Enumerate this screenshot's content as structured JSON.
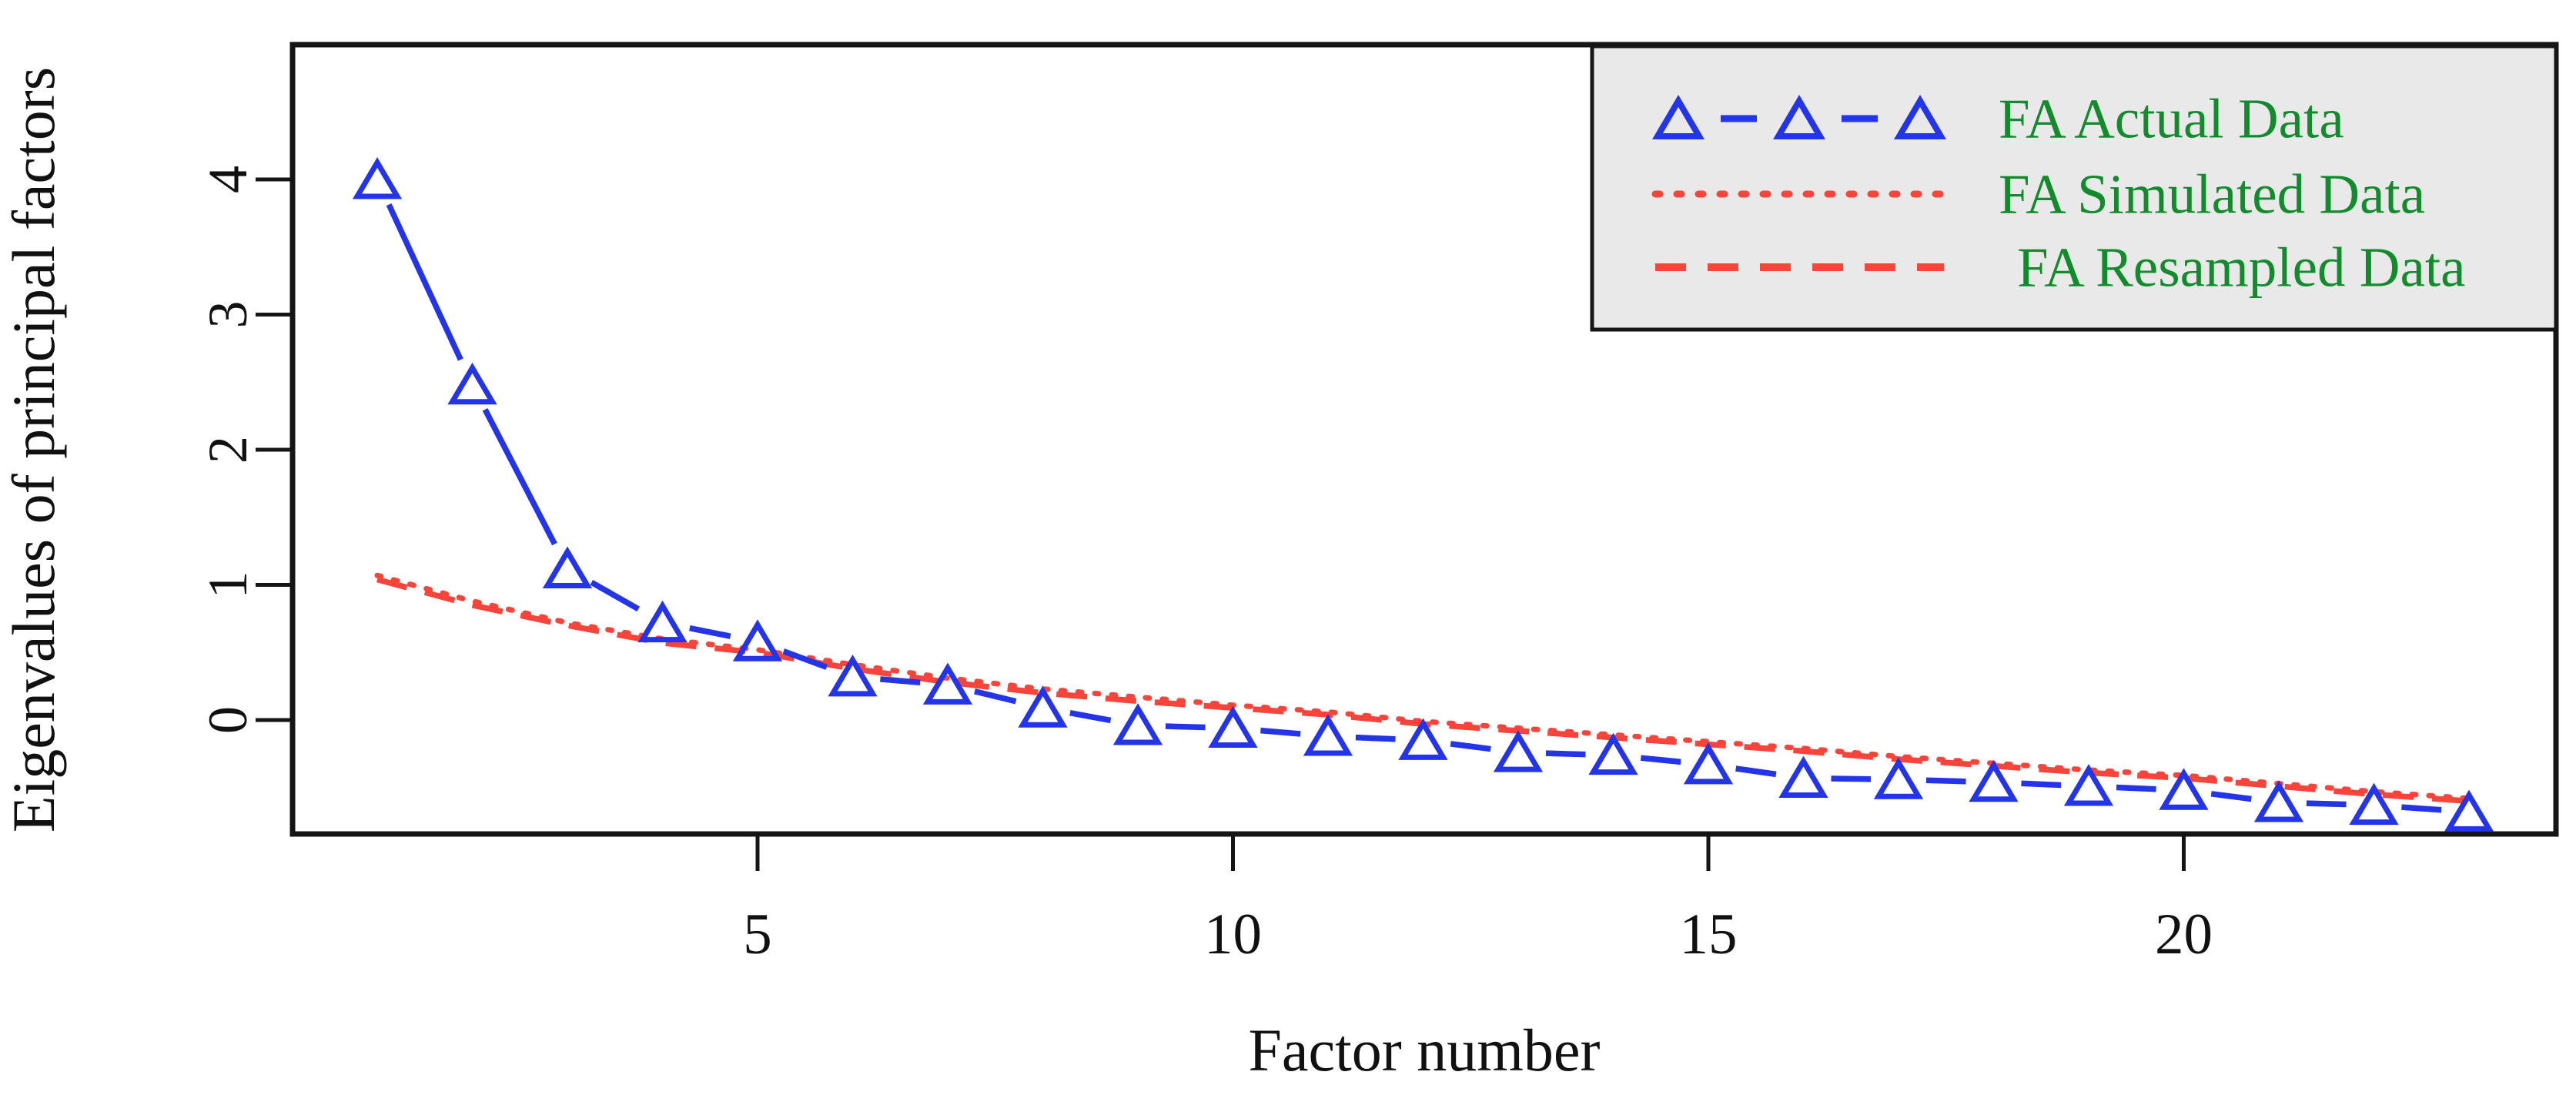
{
  "figure": {
    "background": "#ffffff",
    "frame_color": "#151515",
    "accent_blue": "#2434e8",
    "accent_red": "#f8443a",
    "legend_text_color": "#128b2d",
    "legend_bg": "#e9e9e9"
  },
  "legend": {
    "position": "top-right",
    "entries": [
      {
        "label": "FA Actual Data",
        "color": "#2434e8",
        "line_style": "dash-with-triangle-markers",
        "marker": "open-triangle"
      },
      {
        "label": "FA Simulated Data",
        "color": "#f8443a",
        "line_style": "dotted",
        "marker": "none"
      },
      {
        "label": "FA Resampled Data",
        "color": "#f8443a",
        "line_style": "dashed",
        "marker": "none"
      }
    ]
  },
  "chart_data": {
    "type": "line",
    "title": "",
    "xlabel": "Factor number",
    "ylabel": "Eigenvalues of principal factors",
    "x_ticks": [
      5,
      10,
      15,
      20
    ],
    "y_ticks": [
      0,
      1,
      2,
      3,
      4
    ],
    "xlim": [
      1,
      23
    ],
    "ylim": [
      -0.85,
      4.65
    ],
    "grid": false,
    "legend_position": "top-right",
    "x": [
      1,
      2,
      3,
      4,
      5,
      6,
      7,
      8,
      9,
      10,
      11,
      12,
      13,
      14,
      15,
      16,
      17,
      18,
      19,
      20,
      21,
      22,
      23
    ],
    "series": [
      {
        "name": "FA Actual Data",
        "color": "#2434e8",
        "style": "segments-with-open-triangle-markers",
        "values": [
          4.0,
          2.48,
          1.12,
          0.72,
          0.58,
          0.32,
          0.26,
          0.09,
          -0.04,
          -0.06,
          -0.12,
          -0.15,
          -0.24,
          -0.26,
          -0.33,
          -0.43,
          -0.44,
          -0.46,
          -0.49,
          -0.52,
          -0.61,
          -0.63,
          -0.68
        ]
      },
      {
        "name": "FA Simulated Data",
        "color": "#f8443a",
        "style": "dotted",
        "values": [
          1.07,
          0.88,
          0.72,
          0.6,
          0.52,
          0.41,
          0.31,
          0.23,
          0.17,
          0.11,
          0.06,
          -0.01,
          -0.06,
          -0.11,
          -0.16,
          -0.21,
          -0.27,
          -0.32,
          -0.37,
          -0.41,
          -0.47,
          -0.53,
          -0.58
        ]
      },
      {
        "name": "FA Resampled Data",
        "color": "#f8443a",
        "style": "dashed",
        "values": [
          1.04,
          0.85,
          0.7,
          0.57,
          0.5,
          0.38,
          0.28,
          0.2,
          0.14,
          0.09,
          0.04,
          -0.03,
          -0.08,
          -0.13,
          -0.18,
          -0.23,
          -0.29,
          -0.34,
          -0.39,
          -0.43,
          -0.49,
          -0.55,
          -0.6
        ]
      }
    ]
  }
}
